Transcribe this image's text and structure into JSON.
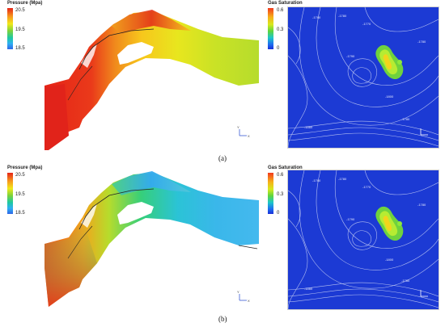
{
  "panels": [
    {
      "id": "a",
      "caption": "(a)",
      "pressure_legend": {
        "title": "Pressure (Mpa)",
        "ticks": [
          "20.5",
          "19.5",
          "18.5"
        ]
      },
      "gas_legend": {
        "title": "Gas Saturation",
        "ticks": [
          "0.6",
          "0.3",
          "0"
        ]
      },
      "contour_labels": [
        "-1760",
        "-1780",
        "-1770",
        "-1780",
        "-1790",
        "-1800",
        "-1860",
        "-1780"
      ]
    },
    {
      "id": "b",
      "caption": "(b)",
      "pressure_legend": {
        "title": "Pressure (Mpa)",
        "ticks": [
          "20.5",
          "19.5",
          "18.5"
        ]
      },
      "gas_legend": {
        "title": "Gas Saturation",
        "ticks": [
          "0.6",
          "0.3",
          "0"
        ]
      },
      "contour_labels": [
        "-1760",
        "-1780",
        "-1770",
        "-1780",
        "-1790",
        "-1800",
        "-1860",
        "-1780"
      ]
    }
  ],
  "colors": {
    "pressure_high": "#e52418",
    "pressure_mid": "#f2e81a",
    "pressure_low": "#2f66e8",
    "map_background": "#1c3ad4",
    "gas_hotspot": "#8ee83a"
  }
}
